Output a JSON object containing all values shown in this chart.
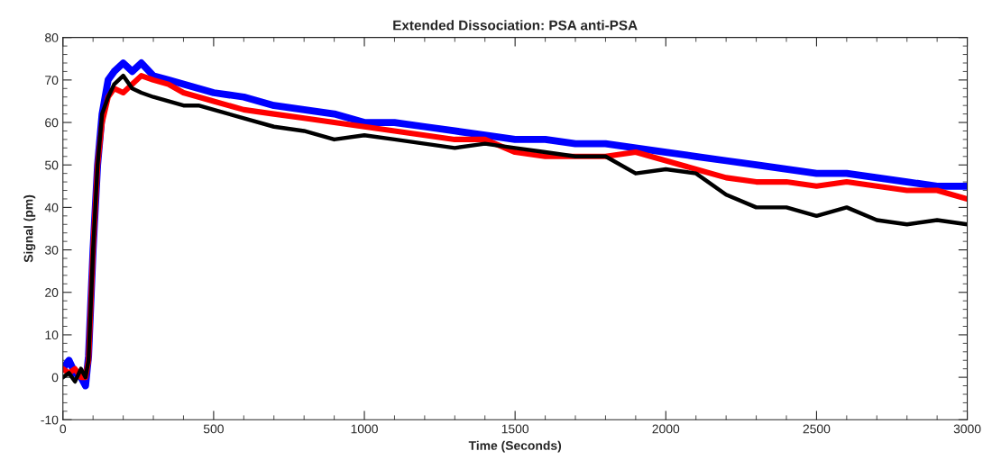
{
  "chart_data": {
    "type": "line",
    "title": "Extended Dissociation: PSA anti-PSA",
    "xlabel": "Time (Seconds)",
    "ylabel": "Signal (pm)",
    "xlim": [
      0,
      3000
    ],
    "xticks": [
      0,
      500,
      1000,
      1500,
      2000,
      2500,
      3000
    ],
    "ylim": [
      -10,
      80
    ],
    "yticks": [
      -10,
      0,
      10,
      20,
      30,
      40,
      50,
      60,
      70,
      80
    ],
    "x": [
      0,
      20,
      40,
      60,
      75,
      85,
      100,
      115,
      130,
      150,
      170,
      200,
      230,
      260,
      300,
      350,
      400,
      450,
      500,
      600,
      700,
      800,
      900,
      1000,
      1100,
      1200,
      1300,
      1400,
      1500,
      1600,
      1700,
      1800,
      1900,
      2000,
      2100,
      2200,
      2300,
      2400,
      2500,
      2600,
      2700,
      2800,
      2900,
      3000
    ],
    "series": [
      {
        "color": "#0000ff",
        "values": [
          2,
          4,
          1,
          0,
          -2,
          5,
          30,
          50,
          62,
          70,
          72,
          74,
          72,
          74,
          71,
          70,
          69,
          68,
          67,
          66,
          64,
          63,
          62,
          60,
          60,
          59,
          58,
          57,
          56,
          56,
          55,
          55,
          54,
          53,
          52,
          51,
          50,
          49,
          48,
          48,
          47,
          46,
          45,
          45
        ]
      },
      {
        "color": "#ff0000",
        "values": [
          2,
          1,
          2,
          0,
          0,
          4,
          30,
          50,
          60,
          66,
          68,
          67,
          69,
          71,
          70,
          69,
          67,
          66,
          65,
          63,
          62,
          61,
          60,
          59,
          58,
          57,
          56,
          56,
          53,
          52,
          52,
          52,
          53,
          51,
          49,
          47,
          46,
          46,
          45,
          46,
          45,
          44,
          44,
          42
        ]
      },
      {
        "color": "#000000",
        "values": [
          0,
          1,
          -1,
          2,
          0,
          4,
          30,
          50,
          62,
          66,
          69,
          71,
          68,
          67,
          66,
          65,
          64,
          64,
          63,
          61,
          59,
          58,
          56,
          57,
          56,
          55,
          54,
          55,
          54,
          53,
          52,
          52,
          48,
          49,
          48,
          43,
          40,
          40,
          38,
          40,
          37,
          36,
          37,
          36
        ]
      }
    ]
  }
}
